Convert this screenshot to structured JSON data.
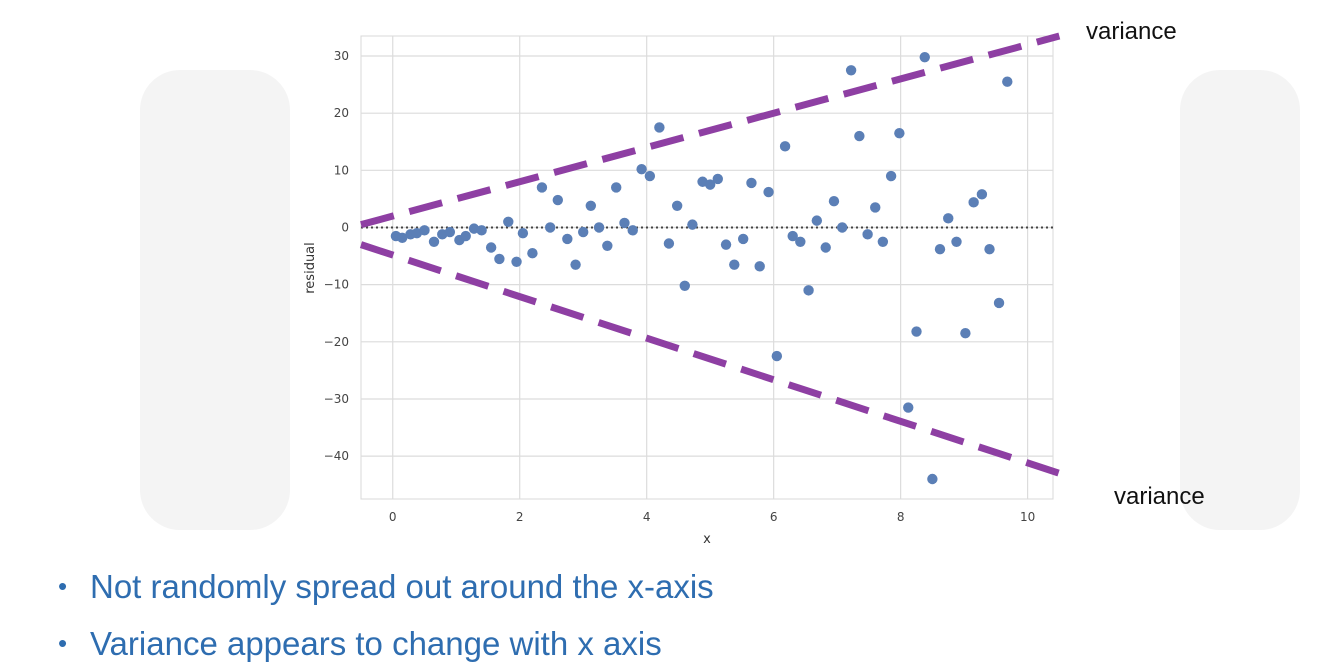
{
  "chart_data": {
    "type": "scatter",
    "xlabel": "x",
    "ylabel": "residual",
    "xlim": [
      -0.5,
      10.4
    ],
    "ylim": [
      -47.5,
      33.5
    ],
    "x_ticks": [
      0,
      2,
      4,
      6,
      8,
      10
    ],
    "y_ticks": [
      30,
      20,
      10,
      0,
      -10,
      -20,
      -30,
      -40
    ],
    "grid": true,
    "zero_line": {
      "y": 0,
      "style": "dotted",
      "color": "#444444"
    },
    "point_color": "#5b7fb6",
    "points": [
      [
        0.05,
        -1.5
      ],
      [
        0.15,
        -1.8
      ],
      [
        0.28,
        -1.2
      ],
      [
        0.38,
        -1.0
      ],
      [
        0.5,
        -0.5
      ],
      [
        0.65,
        -2.5
      ],
      [
        0.78,
        -1.2
      ],
      [
        0.9,
        -0.8
      ],
      [
        1.05,
        -2.2
      ],
      [
        1.15,
        -1.5
      ],
      [
        1.28,
        -0.2
      ],
      [
        1.4,
        -0.5
      ],
      [
        1.55,
        -3.5
      ],
      [
        1.68,
        -5.5
      ],
      [
        1.82,
        1.0
      ],
      [
        1.95,
        -6.0
      ],
      [
        2.05,
        -1.0
      ],
      [
        2.2,
        -4.5
      ],
      [
        2.35,
        7.0
      ],
      [
        2.48,
        0.0
      ],
      [
        2.6,
        4.8
      ],
      [
        2.75,
        -2.0
      ],
      [
        2.88,
        -6.5
      ],
      [
        3.0,
        -0.8
      ],
      [
        3.12,
        3.8
      ],
      [
        3.25,
        0.0
      ],
      [
        3.38,
        -3.2
      ],
      [
        3.52,
        7.0
      ],
      [
        3.65,
        0.8
      ],
      [
        3.78,
        -0.5
      ],
      [
        3.92,
        10.2
      ],
      [
        4.05,
        9.0
      ],
      [
        4.2,
        17.5
      ],
      [
        4.35,
        -2.8
      ],
      [
        4.48,
        3.8
      ],
      [
        4.6,
        -10.2
      ],
      [
        4.72,
        0.5
      ],
      [
        4.88,
        8.0
      ],
      [
        5.0,
        7.5
      ],
      [
        5.12,
        8.5
      ],
      [
        5.25,
        -3.0
      ],
      [
        5.38,
        -6.5
      ],
      [
        5.52,
        -2.0
      ],
      [
        5.65,
        7.8
      ],
      [
        5.78,
        -6.8
      ],
      [
        5.92,
        6.2
      ],
      [
        6.05,
        -22.5
      ],
      [
        6.18,
        14.2
      ],
      [
        6.3,
        -1.5
      ],
      [
        6.42,
        -2.5
      ],
      [
        6.55,
        -11.0
      ],
      [
        6.68,
        1.2
      ],
      [
        6.82,
        -3.5
      ],
      [
        6.95,
        4.6
      ],
      [
        7.08,
        0.0
      ],
      [
        7.22,
        27.5
      ],
      [
        7.35,
        16.0
      ],
      [
        7.48,
        -1.2
      ],
      [
        7.6,
        3.5
      ],
      [
        7.72,
        -2.5
      ],
      [
        7.85,
        9.0
      ],
      [
        7.98,
        16.5
      ],
      [
        8.12,
        -31.5
      ],
      [
        8.25,
        -18.2
      ],
      [
        8.38,
        29.8
      ],
      [
        8.5,
        -44.0
      ],
      [
        8.62,
        -3.8
      ],
      [
        8.75,
        1.6
      ],
      [
        8.88,
        -2.5
      ],
      [
        9.02,
        -18.5
      ],
      [
        9.15,
        4.4
      ],
      [
        9.28,
        5.8
      ],
      [
        9.4,
        -3.8
      ],
      [
        9.55,
        -13.2
      ],
      [
        9.68,
        25.5
      ]
    ],
    "envelope_lines": [
      {
        "name": "variance",
        "color": "#8e3fa3",
        "style": "dashed",
        "from": [
          -0.5,
          0.5
        ],
        "to": [
          10.5,
          33.5
        ]
      },
      {
        "name": "variance",
        "color": "#8e3fa3",
        "style": "dashed",
        "from": [
          -0.5,
          -3.0
        ],
        "to": [
          10.5,
          -43.0
        ]
      }
    ]
  },
  "annotations": {
    "upper": "variance",
    "lower": "variance"
  },
  "bullets": [
    "Not randomly spread out around the x-axis",
    "Variance appears to change with x axis"
  ]
}
